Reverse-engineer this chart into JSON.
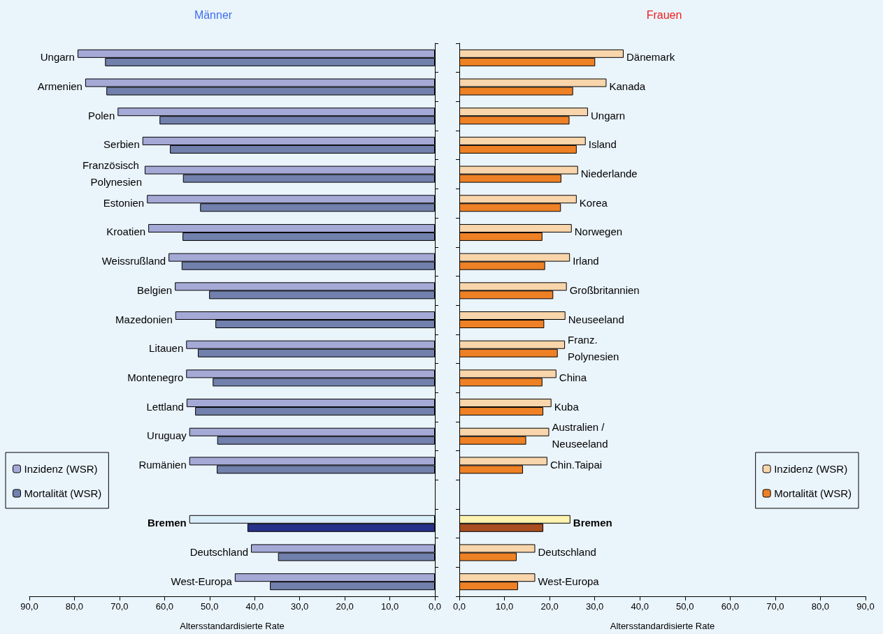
{
  "chart_data": [
    {
      "type": "bar",
      "orientation": "horizontal",
      "title": "Männer",
      "xlabel": "Altersstandardisierte Rate",
      "categories": [
        "Ungarn",
        "Armenien",
        "Polen",
        "Serbien",
        "Französisch Polynesien",
        "Estonien",
        "Kroatien",
        "Weissrußland",
        "Belgien",
        "Mazedonien",
        "Litauen",
        "Montenegro",
        "Lettland",
        "Uruguay",
        "Rumänien",
        null,
        "Bremen",
        "Deutschland",
        "West-Europa"
      ],
      "series": [
        {
          "name": "Inzidenz (WSR)",
          "color": "#a5a9d6",
          "colors": [
            "#a5a9d6",
            "#a5a9d6",
            "#a5a9d6",
            "#a5a9d6",
            "#a5a9d6",
            "#a5a9d6",
            "#a5a9d6",
            "#a5a9d6",
            "#a5a9d6",
            "#a5a9d6",
            "#a5a9d6",
            "#a5a9d6",
            "#a5a9d6",
            "#a5a9d6",
            "#a5a9d6",
            "#a5a9d6",
            "#d9eef8",
            "#a5a9d6",
            "#a5a9d6"
          ],
          "values": [
            79.3,
            77.6,
            70.4,
            64.9,
            64.4,
            63.9,
            63.6,
            59.1,
            57.7,
            57.6,
            55.2,
            55.2,
            55.1,
            54.5,
            54.5,
            null,
            54.5,
            40.8,
            44.4
          ]
        },
        {
          "name": "Mortalität (WSR)",
          "color": "#7180ac",
          "colors": [
            "#7180ac",
            "#7180ac",
            "#7180ac",
            "#7180ac",
            "#7180ac",
            "#7180ac",
            "#7180ac",
            "#7180ac",
            "#7180ac",
            "#7180ac",
            "#7180ac",
            "#7180ac",
            "#7180ac",
            "#7180ac",
            "#7180ac",
            "#7180ac",
            "#26318a",
            "#7180ac",
            "#7180ac"
          ],
          "values": [
            73.2,
            72.9,
            61.1,
            58.8,
            55.9,
            52.1,
            56.0,
            56.2,
            50.1,
            48.7,
            52.6,
            49.3,
            53.2,
            48.3,
            48.4,
            null,
            41.6,
            34.8,
            36.6
          ]
        }
      ],
      "xlim": [
        90,
        0
      ],
      "xticks": [
        {
          "value": 90,
          "label": "90,0"
        },
        {
          "value": 80,
          "label": "80,0"
        },
        {
          "value": 70,
          "label": "70,0"
        },
        {
          "value": 60,
          "label": "60,0"
        },
        {
          "value": 50,
          "label": "50,0"
        },
        {
          "value": 40,
          "label": "40,0"
        },
        {
          "value": 30,
          "label": "30,0"
        },
        {
          "value": 20,
          "label": "20,0"
        },
        {
          "value": 10,
          "label": "10,0"
        },
        {
          "value": 0,
          "label": "0,0"
        }
      ],
      "grid": false,
      "legend": "bottom left"
    },
    {
      "type": "bar",
      "orientation": "horizontal",
      "title": "Frauen",
      "xlabel": "Altersstandardisierte Rate",
      "categories": [
        "Dänemark",
        "Kanada",
        "Ungarn",
        "Island",
        "Niederlande",
        "Korea",
        "Norwegen",
        "Irland",
        "Großbritannien",
        "Neuseeland",
        "Franz. Polynesien",
        "China",
        "Kuba",
        "Australien /Neuseeland",
        "Chin.Taipai",
        null,
        "Bremen",
        "Deutschland",
        "West-Europa"
      ],
      "series": [
        {
          "name": "Inzidenz (WSR)",
          "color": "#f9d5ab",
          "colors": [
            "#f9d5ab",
            "#f9d5ab",
            "#f9d5ab",
            "#f9d5ab",
            "#f9d5ab",
            "#f9d5ab",
            "#f9d5ab",
            "#f9d5ab",
            "#f9d5ab",
            "#f9d5ab",
            "#f9d5ab",
            "#f9d5ab",
            "#f9d5ab",
            "#f9d5ab",
            "#f9d5ab",
            "#f9d5ab",
            "#fef3b0",
            "#f9d5ab",
            "#f9d5ab"
          ],
          "values": [
            36.4,
            32.6,
            28.5,
            28.0,
            26.3,
            26.0,
            24.9,
            24.5,
            23.8,
            23.5,
            23.4,
            21.5,
            20.4,
            19.9,
            19.5,
            null,
            24.6,
            16.8,
            16.8
          ]
        },
        {
          "name": "Mortalität (WSR)",
          "color": "#ee8125",
          "colors": [
            "#ee8125",
            "#ee8125",
            "#ee8125",
            "#ee8125",
            "#ee8125",
            "#ee8125",
            "#ee8125",
            "#ee8125",
            "#ee8125",
            "#ee8125",
            "#ee8125",
            "#ee8125",
            "#ee8125",
            "#ee8125",
            "#ee8125",
            "#ee8125",
            "#a84e20",
            "#ee8125",
            "#ee8125"
          ],
          "values": [
            30.1,
            25.2,
            24.4,
            26.0,
            22.6,
            22.5,
            18.4,
            19.0,
            20.8,
            18.8,
            21.8,
            18.4,
            18.6,
            14.8,
            14.1,
            null,
            18.6,
            12.7,
            13.0
          ]
        }
      ],
      "xlim": [
        0,
        90
      ],
      "xticks": [
        {
          "value": 0,
          "label": "0,0"
        },
        {
          "value": 10,
          "label": "10,0"
        },
        {
          "value": 20,
          "label": "20,0"
        },
        {
          "value": 30,
          "label": "30,0"
        },
        {
          "value": 40,
          "label": "40,0"
        },
        {
          "value": 50,
          "label": "50,0"
        },
        {
          "value": 60,
          "label": "60,0"
        },
        {
          "value": 70,
          "label": "70,0"
        },
        {
          "value": 80,
          "label": "80,0"
        },
        {
          "value": 90,
          "label": "90,0"
        }
      ],
      "grid": false,
      "legend": "right"
    }
  ]
}
